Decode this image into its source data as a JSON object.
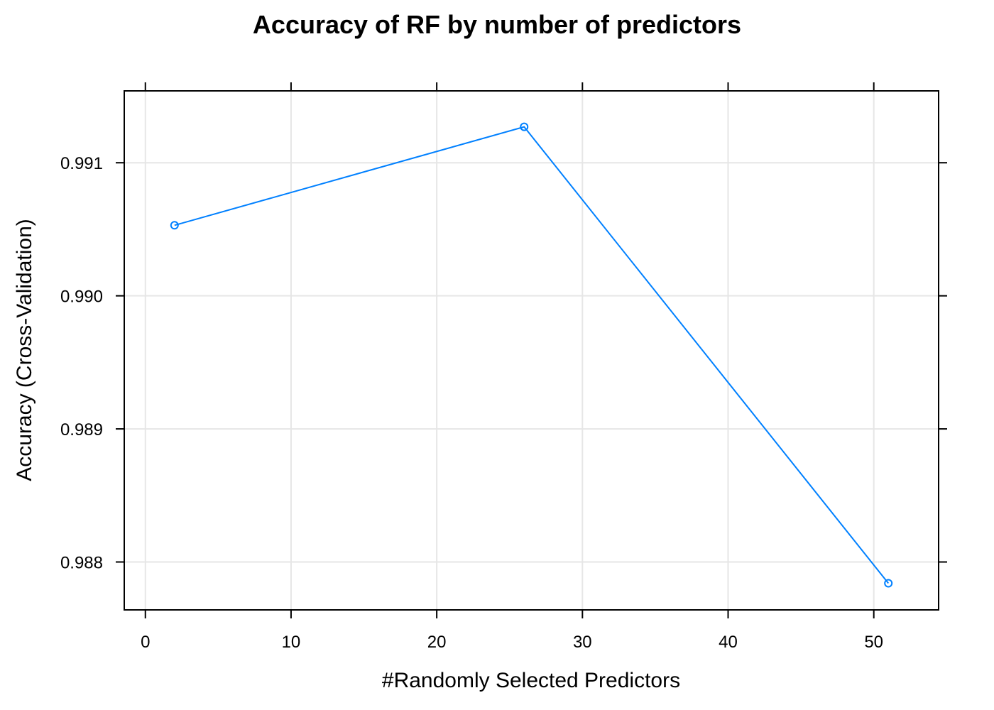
{
  "chart_data": {
    "type": "line",
    "title": "Accuracy of RF by number of predictors",
    "xlabel": "#Randomly Selected Predictors",
    "ylabel": "Accuracy (Cross-Validation)",
    "xlim": [
      -1.45,
      54.45
    ],
    "ylim": [
      0.98764,
      0.99154
    ],
    "x_ticks": [
      0,
      10,
      20,
      30,
      40,
      50
    ],
    "x_tick_labels": [
      "0",
      "10",
      "20",
      "30",
      "40",
      "50"
    ],
    "y_ticks": [
      0.988,
      0.989,
      0.99,
      0.991
    ],
    "y_tick_labels": [
      "0.988",
      "0.989",
      "0.990",
      "0.991"
    ],
    "grid": true,
    "series": [
      {
        "x": [
          2,
          26,
          51
        ],
        "y": [
          0.99053,
          0.99127,
          0.98784
        ],
        "color": "#0080ff"
      }
    ]
  }
}
